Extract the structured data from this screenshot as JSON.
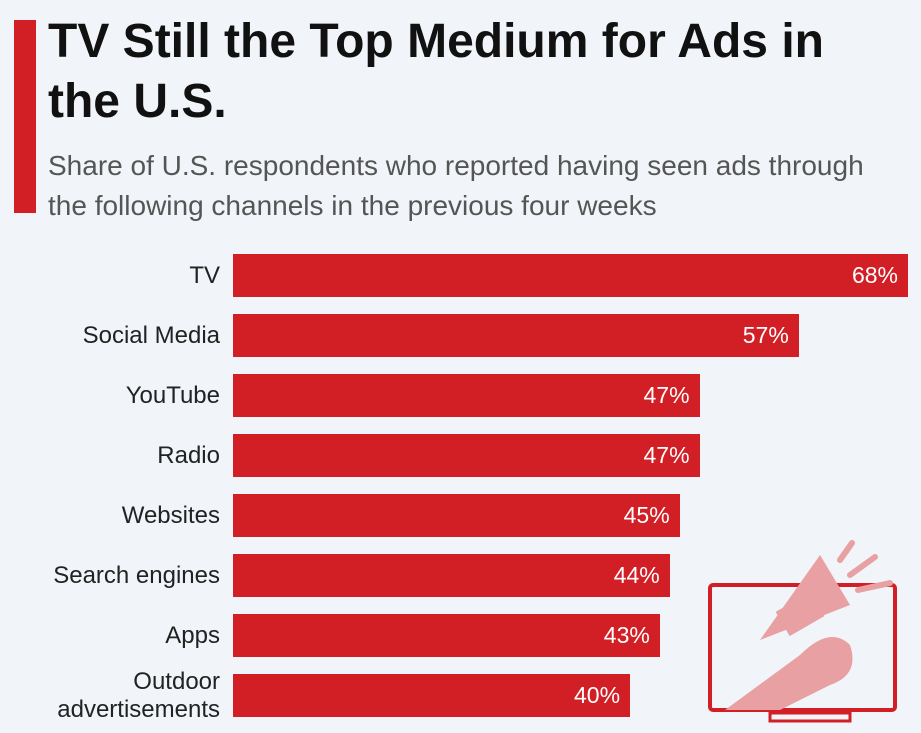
{
  "chart_data": {
    "type": "bar",
    "orientation": "horizontal",
    "title": "TV Still the Top Medium for Ads in the U.S.",
    "subtitle": "Share of U.S. respondents who reported having seen ads through the following channels in the previous four weeks",
    "categories": [
      "TV",
      "Social Media",
      "YouTube",
      "Radio",
      "Websites",
      "Search engines",
      "Apps",
      "Outdoor advertisements"
    ],
    "values": [
      68,
      57,
      47,
      47,
      45,
      44,
      43,
      40
    ],
    "value_labels": [
      "68%",
      "57%",
      "47%",
      "47%",
      "45%",
      "44%",
      "43%",
      "40%"
    ],
    "color": "#d21f26"
  }
}
